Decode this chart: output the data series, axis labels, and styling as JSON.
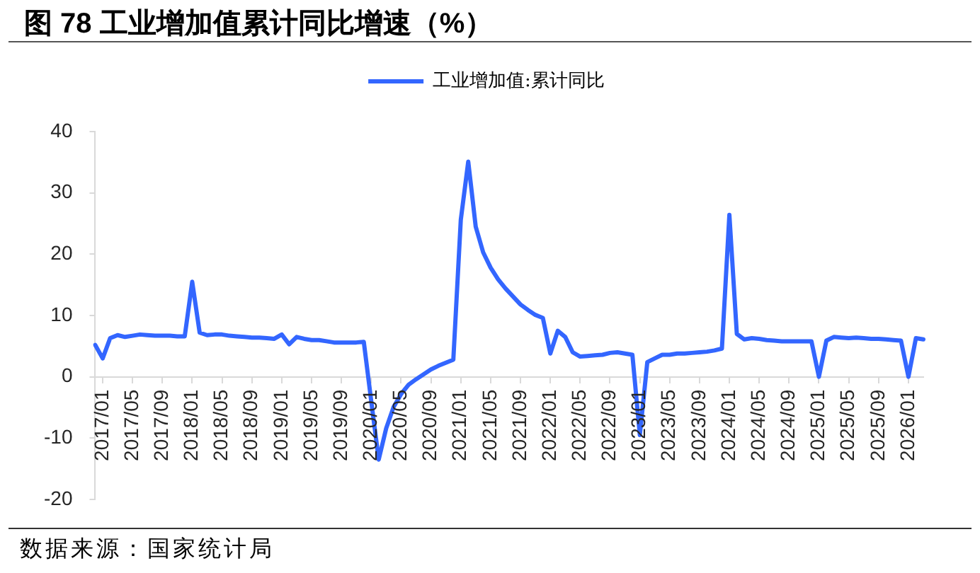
{
  "chart_data": {
    "type": "line",
    "title": "图 78 工业增加值累计同比增速（%）",
    "annotations": [
      "数据来源：国家统计局"
    ],
    "categories": [
      null,
      "2017/01",
      null,
      null,
      null,
      "2017/05",
      null,
      null,
      null,
      "2017/09",
      null,
      null,
      null,
      "2018/01",
      null,
      null,
      null,
      "2018/05",
      null,
      null,
      null,
      "2018/09",
      null,
      null,
      null,
      "2019/01",
      null,
      null,
      null,
      "2019/05",
      null,
      null,
      null,
      "2019/09",
      null,
      null,
      null,
      "2020/01",
      null,
      null,
      null,
      "2020/05",
      null,
      null,
      null,
      "2020/09",
      null,
      null,
      null,
      "2021/01",
      null,
      null,
      null,
      "2021/05",
      null,
      null,
      null,
      "2021/09",
      null,
      null,
      null,
      "2022/01",
      null,
      null,
      null,
      "2022/05",
      null,
      null,
      null,
      "2022/09",
      null,
      null,
      null,
      "2023/01",
      null,
      null,
      null,
      "2023/05",
      null,
      null,
      null,
      "2023/09",
      null,
      null,
      null,
      "2024/01",
      null,
      null,
      null,
      "2024/05",
      null,
      null,
      null,
      "2024/09",
      null,
      null,
      null,
      "2025/01",
      null,
      null,
      null,
      "2025/05",
      null,
      null,
      null,
      "2025/09",
      null,
      null,
      null,
      "2026/01",
      null,
      null
    ],
    "series": [
      {
        "name": "工业增加值:累计同比",
        "color": "#3366ff",
        "values": [
          5.2,
          3.0,
          6.3,
          6.8,
          6.5,
          6.7,
          6.9,
          6.8,
          6.7,
          6.7,
          6.7,
          6.6,
          6.6,
          15.5,
          7.2,
          6.8,
          6.9,
          6.9,
          6.7,
          6.6,
          6.5,
          6.4,
          6.4,
          6.3,
          6.2,
          6.9,
          5.3,
          6.5,
          6.2,
          6.0,
          6.0,
          5.8,
          5.6,
          5.6,
          5.6,
          5.6,
          5.7,
          -4.0,
          -13.5,
          -8.4,
          -4.9,
          -2.8,
          -1.3,
          -0.4,
          0.4,
          1.2,
          1.8,
          2.3,
          2.8,
          25.6,
          35.1,
          24.5,
          20.3,
          17.8,
          15.9,
          14.4,
          13.1,
          11.8,
          10.9,
          10.1,
          9.6,
          3.8,
          7.5,
          6.5,
          4.0,
          3.3,
          3.4,
          3.5,
          3.6,
          3.9,
          4.0,
          3.8,
          3.6,
          -9.5,
          2.4,
          3.0,
          3.6,
          3.6,
          3.8,
          3.8,
          3.9,
          4.0,
          4.1,
          4.3,
          4.6,
          26.4,
          7.0,
          6.1,
          6.3,
          6.2,
          6.0,
          5.9,
          5.8,
          5.8,
          5.8,
          5.8,
          5.8,
          0,
          5.9,
          6.5,
          6.4,
          6.3,
          6.4,
          6.3,
          6.2,
          6.2,
          6.1,
          6.0,
          5.9,
          0,
          6.3,
          6.1
        ]
      }
    ],
    "ylim": [
      -20,
      40
    ],
    "yticks": [
      -20,
      -10,
      0,
      10,
      20,
      30,
      40
    ],
    "legend": "top",
    "grid": false,
    "marker": "none",
    "line_style": "solid"
  }
}
